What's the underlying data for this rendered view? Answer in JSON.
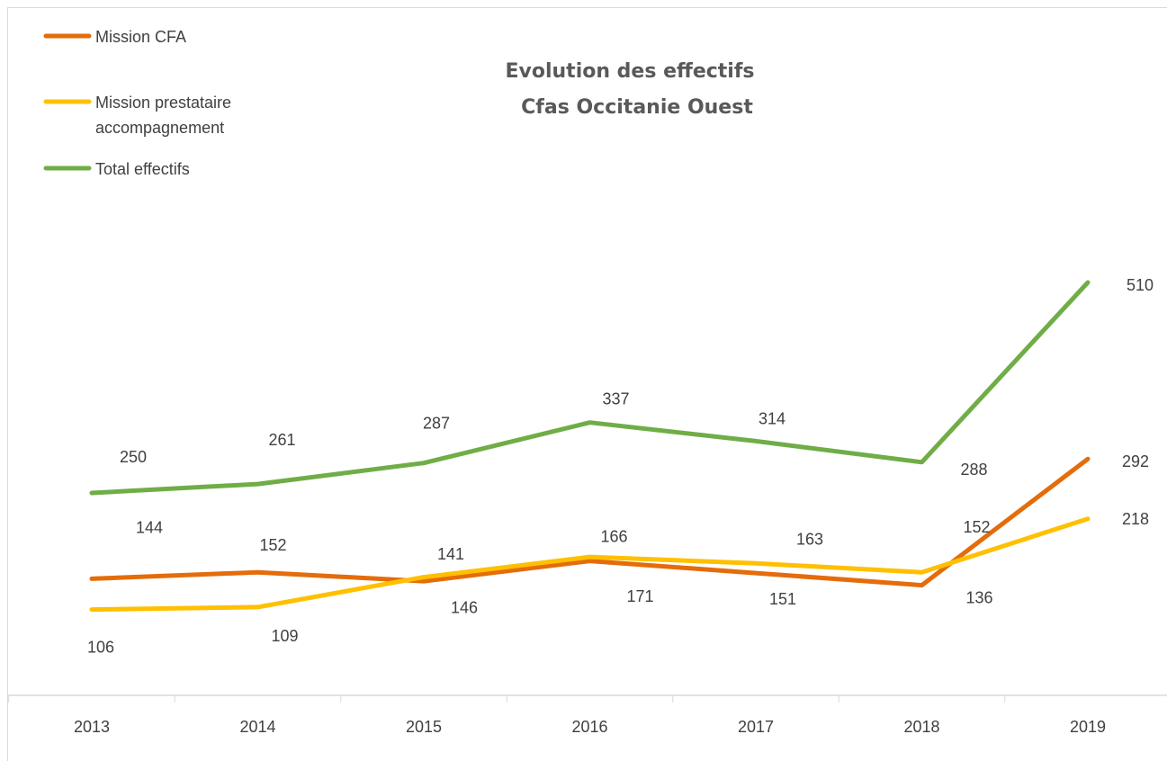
{
  "chart_data": {
    "type": "line",
    "title": [
      "Evolution des effectifs",
      "Cfas Occitanie Ouest"
    ],
    "categories": [
      "2013",
      "2014",
      "2015",
      "2016",
      "2017",
      "2018",
      "2019"
    ],
    "series": [
      {
        "name": "Mission CFA",
        "color": "#e46c0a",
        "values": [
          144,
          152,
          141,
          166,
          151,
          136,
          292
        ]
      },
      {
        "name": "Mission prestataire accompagnement",
        "legend_lines": [
          "Mission prestataire",
          "accompagnement"
        ],
        "color": "#ffc000",
        "values": [
          106,
          109,
          146,
          171,
          163,
          152,
          218
        ]
      },
      {
        "name": "Total effectifs",
        "color": "#70ad47",
        "values": [
          250,
          261,
          287,
          337,
          314,
          288,
          510
        ]
      }
    ],
    "ylim": [
      0,
      580
    ],
    "grid": false,
    "legend_position": "top-left"
  }
}
